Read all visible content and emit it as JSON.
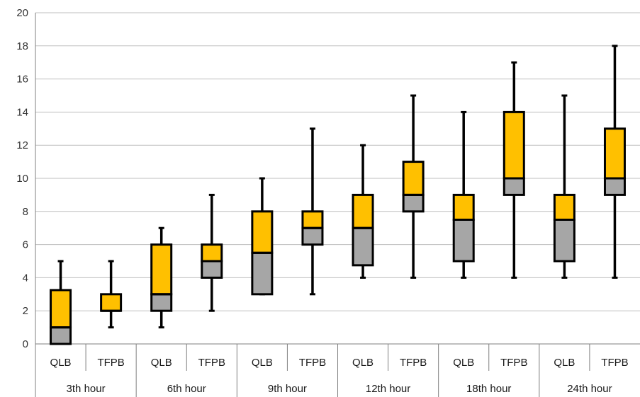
{
  "chart_data": {
    "type": "boxplot",
    "title": "",
    "xlabel": "",
    "ylabel": "",
    "ylim": [
      0,
      20
    ],
    "yticks": [
      0,
      2,
      4,
      6,
      8,
      10,
      12,
      14,
      16,
      18,
      20
    ],
    "grid": true,
    "legend": "none",
    "colors": {
      "upper_box": "#FFC000",
      "lower_box": "#A6A6A6",
      "stroke": "#000000",
      "grid": "#BFBFBF"
    },
    "groups": [
      "3th hour",
      "6th hour",
      "9th hour",
      "12th hour",
      "18th hour",
      "24th hour"
    ],
    "categories": [
      "QLB",
      "TFPB"
    ],
    "boxes": [
      {
        "group": "3th hour",
        "category": "QLB",
        "min": 0,
        "q1": 0,
        "median": 1,
        "q3": 3.25,
        "max": 5
      },
      {
        "group": "3th hour",
        "category": "TFPB",
        "min": 1,
        "q1": 2,
        "median": 2,
        "q3": 3,
        "max": 5
      },
      {
        "group": "6th hour",
        "category": "QLB",
        "min": 1,
        "q1": 2,
        "median": 3,
        "q3": 6,
        "max": 7
      },
      {
        "group": "6th hour",
        "category": "TFPB",
        "min": 2,
        "q1": 4,
        "median": 5,
        "q3": 6,
        "max": 9
      },
      {
        "group": "9th hour",
        "category": "QLB",
        "min": 3,
        "q1": 3,
        "median": 5.5,
        "q3": 8,
        "max": 10
      },
      {
        "group": "9th hour",
        "category": "TFPB",
        "min": 3,
        "q1": 6,
        "median": 7,
        "q3": 8,
        "max": 13
      },
      {
        "group": "12th hour",
        "category": "QLB",
        "min": 4,
        "q1": 4.75,
        "median": 7,
        "q3": 9,
        "max": 12
      },
      {
        "group": "12th hour",
        "category": "TFPB",
        "min": 4,
        "q1": 8,
        "median": 9,
        "q3": 11,
        "max": 15
      },
      {
        "group": "18th hour",
        "category": "QLB",
        "min": 4,
        "q1": 5,
        "median": 7.5,
        "q3": 9,
        "max": 14
      },
      {
        "group": "18th hour",
        "category": "TFPB",
        "min": 4,
        "q1": 9,
        "median": 10,
        "q3": 14,
        "max": 17
      },
      {
        "group": "24th hour",
        "category": "QLB",
        "min": 4,
        "q1": 5,
        "median": 7.5,
        "q3": 9,
        "max": 15
      },
      {
        "group": "24th hour",
        "category": "TFPB",
        "min": 4,
        "q1": 9,
        "median": 10,
        "q3": 13,
        "max": 18
      }
    ]
  }
}
